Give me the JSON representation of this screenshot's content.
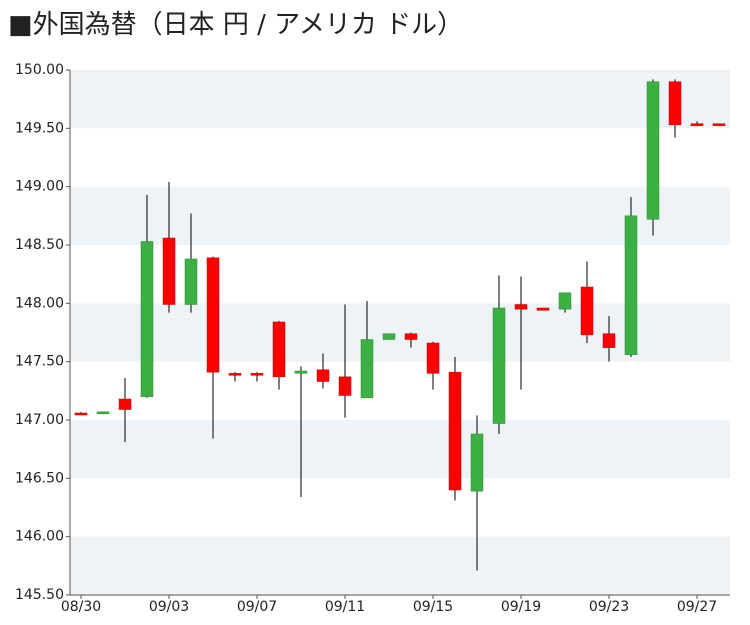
{
  "chart_data": {
    "type": "candlestick",
    "title": "■外国為替（日本 円 / アメリカ ドル）",
    "categories": [
      "08/30",
      null,
      null,
      null,
      "09/03",
      null,
      null,
      null,
      "09/07",
      null,
      null,
      null,
      "09/11",
      null,
      null,
      null,
      "09/15",
      null,
      null,
      null,
      "09/19",
      null,
      null,
      null,
      "09/23",
      null,
      null,
      null,
      "09/27",
      null
    ],
    "open": [
      147.06,
      147.06,
      147.18,
      147.2,
      148.56,
      147.99,
      148.39,
      147.4,
      147.4,
      147.84,
      147.4,
      147.43,
      147.37,
      147.19,
      147.69,
      147.74,
      147.66,
      147.41,
      146.39,
      146.97,
      147.99,
      147.96,
      147.95,
      148.14,
      147.74,
      147.56,
      148.72,
      149.9,
      149.54,
      149.54
    ],
    "high": [
      147.07,
      147.07,
      147.36,
      148.93,
      149.04,
      148.77,
      148.4,
      147.41,
      147.41,
      147.85,
      147.46,
      147.57,
      147.99,
      148.02,
      147.74,
      147.75,
      147.67,
      147.54,
      147.04,
      148.24,
      148.23,
      147.96,
      148.09,
      148.36,
      147.89,
      148.91,
      149.92,
      149.92,
      149.56,
      149.54
    ],
    "low": [
      147.05,
      147.05,
      146.81,
      147.19,
      147.92,
      147.92,
      146.84,
      147.33,
      147.33,
      147.26,
      146.34,
      147.27,
      147.02,
      147.19,
      147.69,
      147.62,
      147.26,
      146.31,
      145.71,
      146.88,
      147.26,
      147.94,
      147.92,
      147.66,
      147.5,
      147.54,
      148.58,
      149.42,
      149.52,
      149.52
    ],
    "close": [
      147.05,
      147.07,
      147.09,
      148.53,
      147.99,
      148.38,
      147.41,
      147.39,
      147.39,
      147.37,
      147.42,
      147.33,
      147.21,
      147.69,
      147.74,
      147.69,
      147.4,
      146.4,
      146.88,
      147.96,
      147.95,
      147.94,
      148.09,
      147.73,
      147.62,
      148.75,
      149.9,
      149.53,
      149.53,
      149.53
    ],
    "up_color": "#3cb043",
    "down_color": "#ff0000",
    "ylim": [
      145.5,
      150
    ],
    "yticks": [
      {
        "value": 145.5,
        "label": "145.50"
      },
      {
        "value": 146,
        "label": "146.00"
      },
      {
        "value": 146.5,
        "label": "146.50"
      },
      {
        "value": 147,
        "label": "147.00"
      },
      {
        "value": 147.5,
        "label": "147.50"
      },
      {
        "value": 148,
        "label": "148.00"
      },
      {
        "value": 148.5,
        "label": "148.50"
      },
      {
        "value": 149,
        "label": "149.00"
      },
      {
        "value": 149.5,
        "label": "149.50"
      },
      {
        "value": 150,
        "label": "150.00"
      }
    ],
    "grid": "bands",
    "band_color": "#eef3f8"
  }
}
